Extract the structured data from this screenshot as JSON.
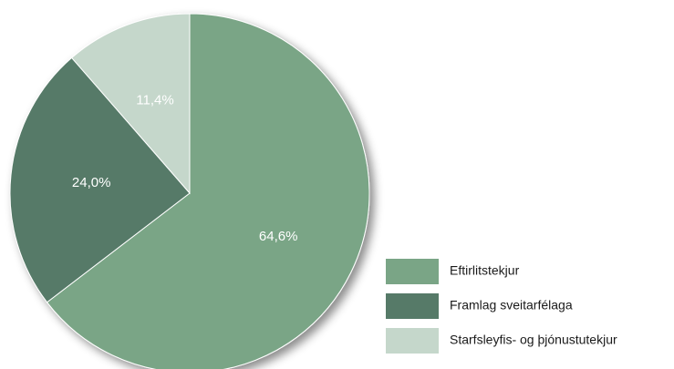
{
  "chart_data": {
    "type": "pie",
    "slices": [
      {
        "label": "Eftirlitstekjur",
        "value": 64.6,
        "display": "64,6%",
        "color": "#7aa586"
      },
      {
        "label": "Framlag sveitarfélaga",
        "value": 24.0,
        "display": "24,0%",
        "color": "#567a68"
      },
      {
        "label": "Starfsleyfis- og þjónustutekjur",
        "value": 11.4,
        "display": "11,4%",
        "color": "#c5d7cb"
      }
    ],
    "legend_position": "bottom-right",
    "start_angle": "12 o'clock",
    "direction": "clockwise"
  }
}
